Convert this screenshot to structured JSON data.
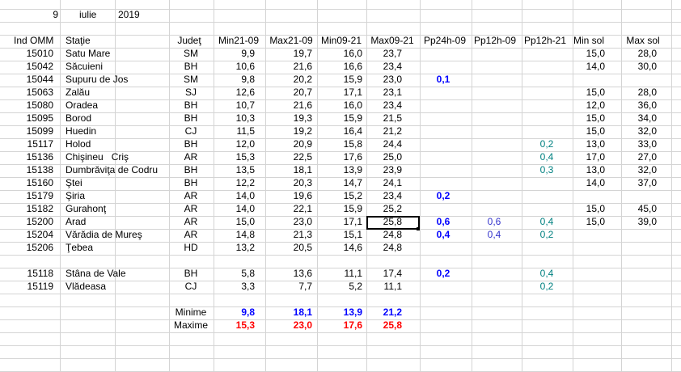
{
  "date": {
    "day": "9",
    "month": "iulie",
    "year": "2019"
  },
  "columns": [
    "Ind OMM",
    "Staţie",
    "Judeţ",
    "Min21-09",
    "Max21-09",
    "Min09-21",
    "Max09-21",
    "Pp24h-09",
    "Pp12h-09",
    "Pp12h-21",
    "Min sol",
    "Max sol"
  ],
  "stations": [
    {
      "id": "15010",
      "name": "Satu Mare",
      "county": "SM",
      "min2109": "9,9",
      "max2109": "19,7",
      "min0921": "16,0",
      "max0921": "23,7",
      "minsol": "15,0",
      "maxsol": "28,0"
    },
    {
      "id": "15042",
      "name": "Săcuieni",
      "county": "BH",
      "min2109": "10,6",
      "max2109": "21,6",
      "min0921": "16,6",
      "max0921": "23,4",
      "minsol": "14,0",
      "maxsol": "30,0"
    },
    {
      "id": "15044",
      "name": "Supuru de Jos",
      "county": "SM",
      "min2109": "9,8",
      "max2109": "20,2",
      "min0921": "15,9",
      "max0921": "23,0",
      "pp24": "0,1"
    },
    {
      "id": "15063",
      "name": "Zalău",
      "county": "SJ",
      "min2109": "12,6",
      "max2109": "20,7",
      "min0921": "17,1",
      "max0921": "23,1",
      "minsol": "15,0",
      "maxsol": "28,0"
    },
    {
      "id": "15080",
      "name": "Oradea",
      "county": "BH",
      "min2109": "10,7",
      "max2109": "21,6",
      "min0921": "16,0",
      "max0921": "23,4",
      "minsol": "12,0",
      "maxsol": "36,0"
    },
    {
      "id": "15095",
      "name": "Borod",
      "county": "BH",
      "min2109": "10,3",
      "max2109": "19,3",
      "min0921": "15,9",
      "max0921": "21,5",
      "minsol": "15,0",
      "maxsol": "34,0"
    },
    {
      "id": "15099",
      "name": "Huedin",
      "county": "CJ",
      "min2109": "11,5",
      "max2109": "19,2",
      "min0921": "16,4",
      "max0921": "21,2",
      "minsol": "15,0",
      "maxsol": "32,0"
    },
    {
      "id": "15117",
      "name": "Holod",
      "county": "BH",
      "min2109": "12,0",
      "max2109": "20,9",
      "min0921": "15,8",
      "max0921": "24,4",
      "pp1221": "0,2",
      "minsol": "13,0",
      "maxsol": "33,0"
    },
    {
      "id": "15136",
      "name": "Chişineu   Criş",
      "county": "AR",
      "min2109": "15,3",
      "max2109": "22,5",
      "min0921": "17,6",
      "max0921": "25,0",
      "pp1221": "0,4",
      "minsol": "17,0",
      "maxsol": "27,0"
    },
    {
      "id": "15138",
      "name": "Dumbrăviţa de Codru",
      "county": "BH",
      "min2109": "13,5",
      "max2109": "18,1",
      "min0921": "13,9",
      "max0921": "23,9",
      "pp1221": "0,3",
      "minsol": "13,0",
      "maxsol": "32,0"
    },
    {
      "id": "15160",
      "name": "Ştei",
      "county": "BH",
      "min2109": "12,2",
      "max2109": "20,3",
      "min0921": "14,7",
      "max0921": "24,1",
      "minsol": "14,0",
      "maxsol": "37,0"
    },
    {
      "id": "15179",
      "name": "Şiria",
      "county": "AR",
      "min2109": "14,0",
      "max2109": "19,6",
      "min0921": "15,2",
      "max0921": "23,4",
      "pp24": "0,2"
    },
    {
      "id": "15182",
      "name": "Gurahonţ",
      "county": "AR",
      "min2109": "14,0",
      "max2109": "22,1",
      "min0921": "15,9",
      "max0921": "25,2",
      "minsol": "15,0",
      "maxsol": "45,0"
    },
    {
      "id": "15200",
      "name": "Arad",
      "county": "AR",
      "min2109": "15,0",
      "max2109": "23,0",
      "min0921": "17,1",
      "max0921": "25,8",
      "pp24": "0,6",
      "pp1209": "0,6",
      "pp1221": "0,4",
      "minsol": "15,0",
      "maxsol": "39,0"
    },
    {
      "id": "15204",
      "name": "Vărădia de Mureş",
      "county": "AR",
      "min2109": "14,8",
      "max2109": "21,3",
      "min0921": "15,1",
      "max0921": "24,8",
      "pp24": "0,4",
      "pp1209": "0,4",
      "pp1221": "0,2"
    },
    {
      "id": "15206",
      "name": "Ţebea",
      "county": "HD",
      "min2109": "13,2",
      "max2109": "20,5",
      "min0921": "14,6",
      "max0921": "24,8"
    },
    {
      "id": "15118",
      "name": "Stâna de Vale",
      "county": "BH",
      "min2109": "5,8",
      "max2109": "13,6",
      "min0921": "11,1",
      "max0921": "17,4",
      "pp24": "0,2",
      "pp1221": "0,4"
    },
    {
      "id": "15119",
      "name": "Vlădeasa",
      "county": "CJ",
      "min2109": "3,3",
      "max2109": "7,7",
      "min0921": "5,2",
      "max0921": "11,1",
      "pp1221": "0,2"
    }
  ],
  "summary": [
    {
      "label": "Minime",
      "min2109": "9,8",
      "max2109": "18,1",
      "min0921": "13,9",
      "max0921": "21,2"
    },
    {
      "label": "Maxime",
      "min2109": "15,3",
      "max2109": "23,0",
      "min0921": "17,6",
      "max0921": "25,8"
    }
  ]
}
